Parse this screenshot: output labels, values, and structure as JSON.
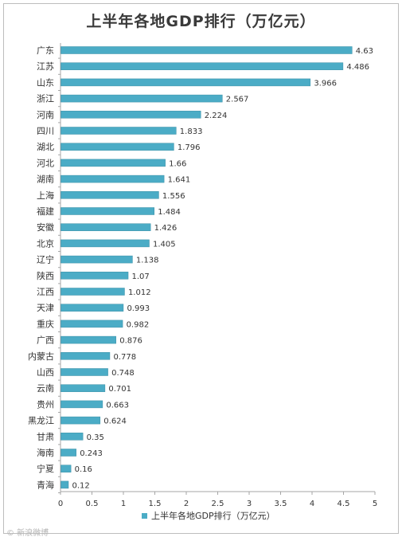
{
  "chart_data": {
    "type": "bar",
    "orientation": "horizontal",
    "title": "上半年各地GDP排行（万亿元）",
    "categories": [
      "广东",
      "江苏",
      "山东",
      "浙江",
      "河南",
      "四川",
      "湖北",
      "河北",
      "湖南",
      "上海",
      "福建",
      "安徽",
      "北京",
      "辽宁",
      "陕西",
      "江西",
      "天津",
      "重庆",
      "广西",
      "内蒙古",
      "山西",
      "云南",
      "贵州",
      "黑龙江",
      "甘肃",
      "海南",
      "宁夏",
      "青海"
    ],
    "series": [
      {
        "name": "上半年各地GDP排行（万亿元）",
        "values": [
          4.63,
          4.486,
          3.966,
          2.567,
          2.224,
          1.833,
          1.796,
          1.66,
          1.641,
          1.556,
          1.484,
          1.426,
          1.405,
          1.138,
          1.07,
          1.012,
          0.993,
          0.982,
          0.876,
          0.778,
          0.748,
          0.701,
          0.663,
          0.624,
          0.35,
          0.243,
          0.16,
          0.12
        ],
        "labels": [
          "4.63",
          "4.486",
          "3.966",
          "2.567",
          "2.224",
          "1.833",
          "1.796",
          "1.66",
          "1.641",
          "1.556",
          "1.484",
          "1.426",
          "1.405",
          "1.138",
          "1.07",
          "1.012",
          "0.993",
          "0.982",
          "0.876",
          "0.778",
          "0.748",
          "0.701",
          "0.663",
          "0.624",
          "0.35",
          "0.243",
          "0.16",
          "0.12"
        ]
      }
    ],
    "xlim": [
      0,
      5
    ],
    "xticks": [
      "0",
      "0.5",
      "1",
      "1.5",
      "2",
      "2.5",
      "3",
      "3.5",
      "4",
      "4.5",
      "5"
    ],
    "grid": false,
    "legend": "bottom",
    "colors": {
      "bar": "#4bacc6",
      "bar_edge": "#3b8fa6",
      "text": "#333333",
      "axis": "#a6a6a6"
    }
  },
  "watermark": "© 新浪微博"
}
